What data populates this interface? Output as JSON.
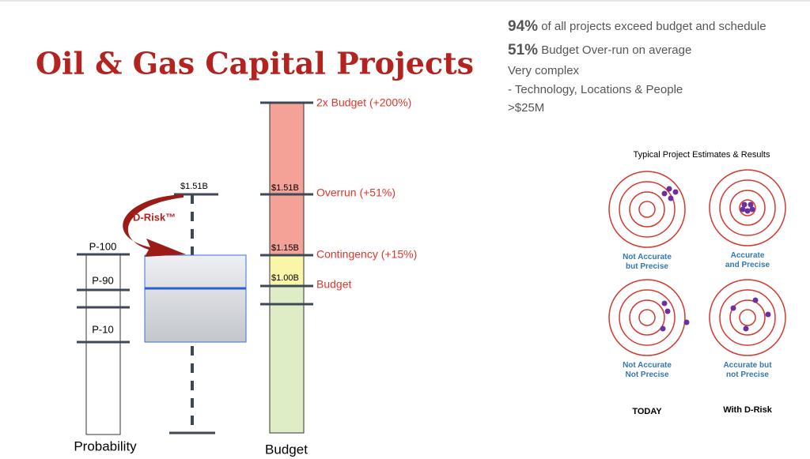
{
  "header": {
    "title": "Oil & Gas Capital Projects"
  },
  "facts": [
    {
      "figure": "94%",
      "text": " of all projects exceed budget and schedule"
    },
    {
      "figure": "51%",
      "text": " Budget Over-run on average"
    },
    {
      "text": "Very complex"
    },
    {
      "text": "- Technology, Locations & People"
    },
    {
      "text": ">$25M"
    }
  ],
  "budget": {
    "label": "Budget",
    "levels": [
      {
        "label": "2x Budget (+200%)"
      },
      {
        "label": "Overrun (+51%)",
        "amount": "$1.51B"
      },
      {
        "label": "Contingency (+15%)",
        "amount": "$1.15B"
      },
      {
        "label": "Budget",
        "amount": "$1.00B"
      }
    ]
  },
  "estimate": {
    "top": "$1.51B",
    "arrow": "D-Risk™"
  },
  "probability": {
    "label": "Probability",
    "levels": [
      "P-100",
      "P-90",
      "P-10"
    ]
  },
  "targets": {
    "title": "Typical Project Estimates & Results",
    "items": [
      {
        "lines": [
          "Not Accurate",
          "but Precise"
        ]
      },
      {
        "lines": [
          "Accurate",
          "and Precise"
        ]
      },
      {
        "lines": [
          "Not Accurate",
          "Not Precise"
        ]
      },
      {
        "lines": [
          "Accurate but",
          "not Precise"
        ]
      }
    ],
    "columns": [
      "TODAY",
      "With D-Risk"
    ]
  }
}
